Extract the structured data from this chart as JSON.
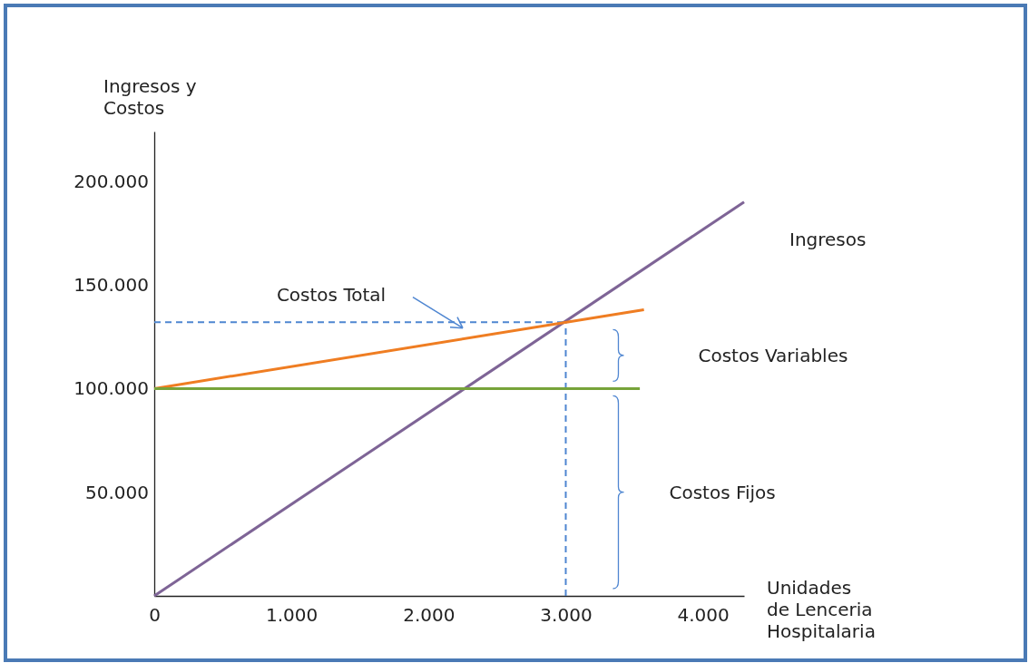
{
  "chart_data": {
    "type": "line",
    "ylabel": "Ingresos y Costos",
    "xlabel": "Unidades de Lenceria Hospitalaria",
    "xlim": [
      0,
      4300
    ],
    "ylim": [
      0,
      224000
    ],
    "xticks": [
      {
        "value": 0,
        "label": "0"
      },
      {
        "value": 1000,
        "label": "1.000"
      },
      {
        "value": 2000,
        "label": "2.000"
      },
      {
        "value": 3000,
        "label": "3.000"
      },
      {
        "value": 4000,
        "label": "4.000"
      }
    ],
    "yticks": [
      {
        "value": 50000,
        "label": "50.000"
      },
      {
        "value": 100000,
        "label": "100.000"
      },
      {
        "value": 150000,
        "label": "150.000"
      },
      {
        "value": 200000,
        "label": "200.000"
      }
    ],
    "series": [
      {
        "name": "Ingresos",
        "color": "#7e6496",
        "x": [
          0,
          4300
        ],
        "values": [
          0,
          190000
        ]
      },
      {
        "name": "Costos Total",
        "color": "#ef7d22",
        "x": [
          0,
          3570
        ],
        "values": [
          100000,
          138000
        ]
      },
      {
        "color": "#77a33a",
        "x": [
          0,
          3540
        ],
        "values": [
          100000,
          100000
        ]
      }
    ],
    "ref_lines": [
      {
        "axis": "x",
        "value": 3000,
        "color": "#4f86d1",
        "line_style": "dashed"
      },
      {
        "axis": "y",
        "value": 132000,
        "color": "#4f86d1",
        "line_style": "dashed"
      }
    ],
    "annotations": [
      "Costos Variables",
      "Costos Fijos"
    ]
  }
}
